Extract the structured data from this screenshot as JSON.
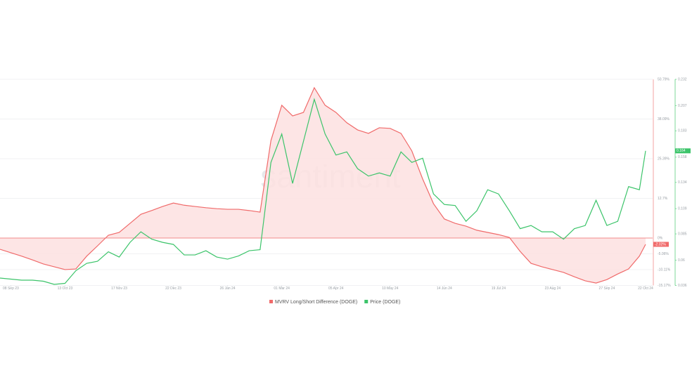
{
  "chart_data": {
    "type": "line",
    "watermark": "santiment",
    "x": [
      "2023-09-01",
      "2023-09-08",
      "2023-09-15",
      "2023-09-22",
      "2023-09-29",
      "2023-10-06",
      "2023-10-13",
      "2023-10-20",
      "2023-10-27",
      "2023-11-03",
      "2023-11-10",
      "2023-11-17",
      "2023-11-24",
      "2023-12-01",
      "2023-12-08",
      "2023-12-15",
      "2023-12-22",
      "2023-12-29",
      "2024-01-05",
      "2024-01-12",
      "2024-01-19",
      "2024-01-26",
      "2024-02-02",
      "2024-02-09",
      "2024-02-16",
      "2024-02-23",
      "2024-03-01",
      "2024-03-08",
      "2024-03-15",
      "2024-03-22",
      "2024-03-29",
      "2024-04-05",
      "2024-04-12",
      "2024-04-19",
      "2024-04-26",
      "2024-05-03",
      "2024-05-10",
      "2024-05-17",
      "2024-05-24",
      "2024-05-31",
      "2024-06-07",
      "2024-06-14",
      "2024-06-21",
      "2024-06-28",
      "2024-07-05",
      "2024-07-12",
      "2024-07-19",
      "2024-07-26",
      "2024-08-02",
      "2024-08-09",
      "2024-08-16",
      "2024-08-23",
      "2024-08-30",
      "2024-09-06",
      "2024-09-13",
      "2024-09-20",
      "2024-09-27",
      "2024-10-04",
      "2024-10-11",
      "2024-10-18",
      "2024-10-22"
    ],
    "xlim": [
      "2023-09-01",
      "2024-10-22"
    ],
    "xticks": [
      {
        "value": "2023-09-08",
        "label": "08 Sep 23"
      },
      {
        "value": "2023-10-13",
        "label": "13 Oct 23"
      },
      {
        "value": "2023-11-17",
        "label": "17 Nov 23"
      },
      {
        "value": "2023-12-22",
        "label": "22 Dec 23"
      },
      {
        "value": "2024-01-26",
        "label": "26 Jan 24"
      },
      {
        "value": "2024-03-01",
        "label": "01 Mar 24"
      },
      {
        "value": "2024-04-05",
        "label": "05 Apr 24"
      },
      {
        "value": "2024-05-10",
        "label": "10 May 24"
      },
      {
        "value": "2024-06-14",
        "label": "14 Jun 24"
      },
      {
        "value": "2024-07-19",
        "label": "19 Jul 24"
      },
      {
        "value": "2024-08-23",
        "label": "23 Aug 24"
      },
      {
        "value": "2024-09-27",
        "label": "27 Sep 24"
      },
      {
        "value": "2024-10-22",
        "label": "22 Oct 24"
      }
    ],
    "ylim": [
      -15.17,
      50.79
    ],
    "yticks": [
      {
        "value": -15.17,
        "label": "-15.17%"
      },
      {
        "value": -10.11,
        "label": "-10.11%"
      },
      {
        "value": -5.06,
        "label": "-5.06%"
      },
      {
        "value": 0,
        "label": "0%"
      },
      {
        "value": 12.7,
        "label": "12.7%"
      },
      {
        "value": 25.39,
        "label": "25.39%"
      },
      {
        "value": 38.09,
        "label": "38.09%"
      },
      {
        "value": 50.79,
        "label": "50.79%"
      }
    ],
    "y2lim": [
      0.036,
      0.232
    ],
    "y2ticks": [
      0.036,
      0.06,
      0.085,
      0.109,
      0.134,
      0.158,
      0.183,
      0.207,
      0.232
    ],
    "grid": true,
    "series": [
      {
        "name": "MVRV Long/Short Difference (DOGE)",
        "color": "#f06a6a",
        "fill": "#fde0e0",
        "axis": "y",
        "last_label": "-2.02%",
        "values": [
          -3.6,
          -4.7,
          -5.8,
          -7.0,
          -8.3,
          -9.2,
          -10.1,
          -9.9,
          -5.8,
          -2.5,
          0.9,
          1.8,
          4.7,
          7.6,
          8.8,
          10.1,
          11.2,
          10.5,
          10.1,
          9.7,
          9.4,
          9.2,
          9.2,
          8.8,
          8.3,
          31.2,
          42.5,
          39.1,
          40.2,
          48.1,
          42.5,
          40.2,
          36.9,
          34.6,
          33.5,
          35.3,
          35.1,
          33.5,
          27.9,
          18.9,
          11.0,
          6.1,
          4.7,
          3.8,
          2.5,
          1.8,
          1.1,
          0.2,
          -4.3,
          -8.1,
          -9.2,
          -10.1,
          -11.0,
          -12.4,
          -13.7,
          -14.4,
          -13.3,
          -11.5,
          -9.9,
          -5.8,
          -2.02
        ]
      },
      {
        "name": "Price (DOGE)",
        "color": "#3cc46a",
        "axis": "y2",
        "last_label": "0.164",
        "values": [
          0.043,
          0.042,
          0.041,
          0.041,
          0.04,
          0.037,
          0.038,
          0.05,
          0.057,
          0.059,
          0.068,
          0.063,
          0.077,
          0.087,
          0.08,
          0.077,
          0.075,
          0.065,
          0.065,
          0.069,
          0.063,
          0.061,
          0.064,
          0.069,
          0.07,
          0.153,
          0.18,
          0.133,
          0.173,
          0.213,
          0.18,
          0.16,
          0.163,
          0.147,
          0.14,
          0.143,
          0.14,
          0.163,
          0.153,
          0.157,
          0.123,
          0.113,
          0.112,
          0.097,
          0.107,
          0.127,
          0.123,
          0.107,
          0.09,
          0.093,
          0.087,
          0.087,
          0.08,
          0.09,
          0.093,
          0.117,
          0.093,
          0.097,
          0.13,
          0.127,
          0.164
        ]
      }
    ]
  }
}
